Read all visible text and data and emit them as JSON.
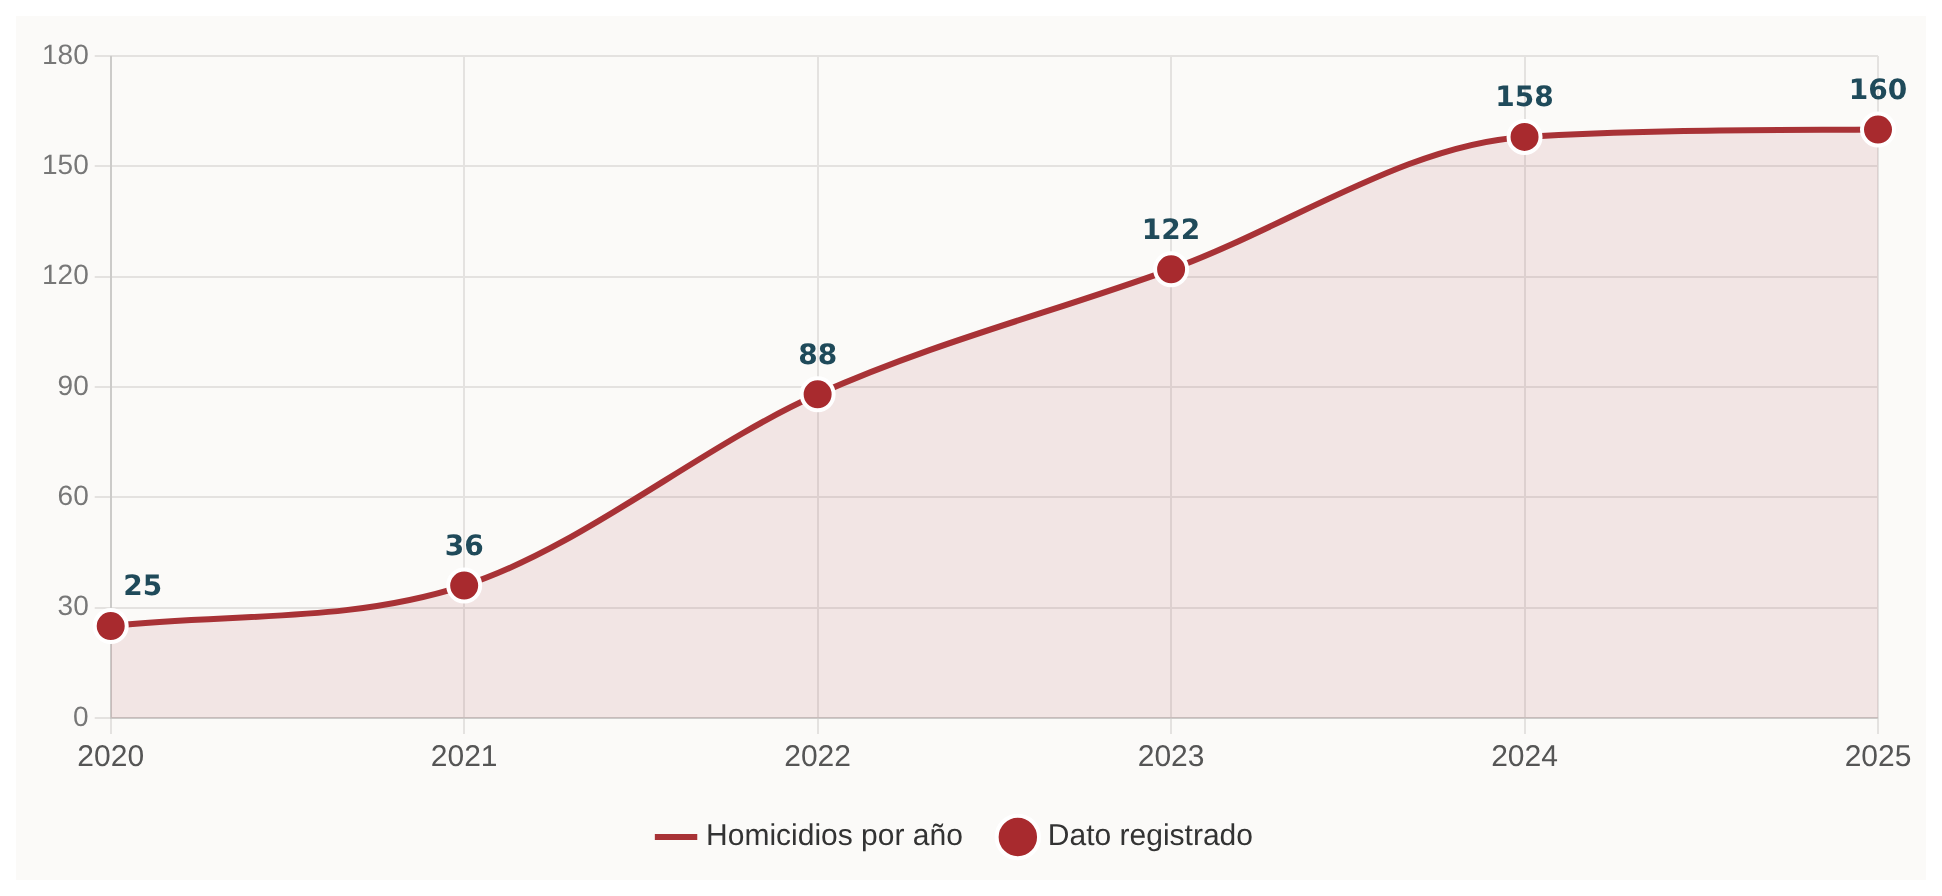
{
  "chart_data": {
    "type": "line",
    "categories": [
      "2020",
      "2021",
      "2022",
      "2023",
      "2024",
      "2025"
    ],
    "series": [
      {
        "name": "Homicidios por año",
        "type": "area",
        "color": "#a83236",
        "marker": "none",
        "values": [
          25,
          36,
          88,
          122,
          158,
          160
        ]
      },
      {
        "name": "Dato registrado",
        "type": "scatter",
        "color": "#a82a2e",
        "marker": "circle",
        "values": [
          25,
          36,
          88,
          122,
          158,
          160
        ],
        "value_labels": [
          "25",
          "36",
          "88",
          "122",
          "158",
          "160"
        ]
      }
    ],
    "ylim": [
      0,
      180
    ],
    "yticks": [
      0,
      30,
      60,
      90,
      120,
      150,
      180
    ],
    "grid": true,
    "legend": "bottom"
  }
}
